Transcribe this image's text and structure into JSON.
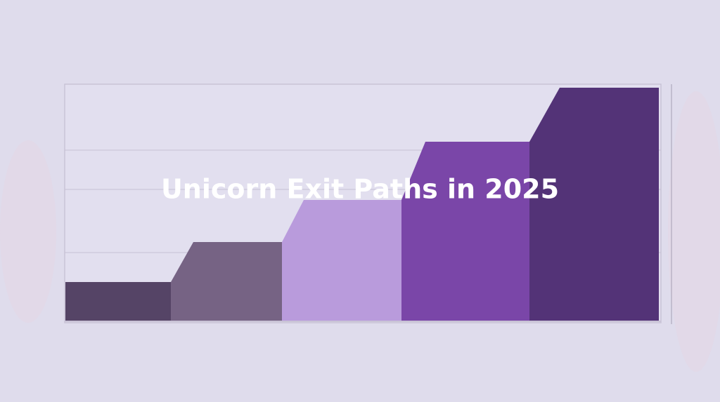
{
  "title": "Unicorn Exit Paths in 2025"
}
